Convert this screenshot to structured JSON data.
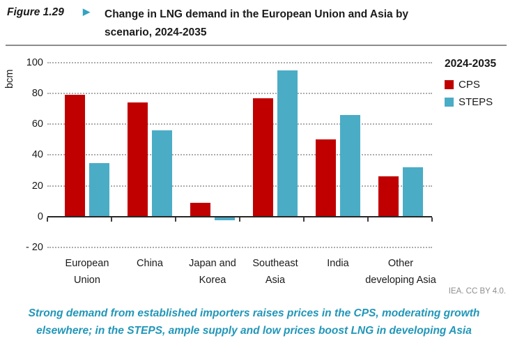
{
  "figure": {
    "label": "Figure 1.29",
    "marker": "▶",
    "title_lines": [
      "Change in LNG demand in the European Union and Asia by",
      "scenario, 2024-2035"
    ]
  },
  "chart_data": {
    "type": "bar",
    "title": "Change in LNG demand in the European Union and Asia by scenario, 2024-2035",
    "xlabel": "",
    "ylabel": "bcm",
    "ylim": [
      -20,
      100
    ],
    "yticks": [
      100,
      80,
      60,
      40,
      20,
      0,
      -20
    ],
    "ytick_labels": [
      "100",
      "80",
      "60",
      "40",
      "20",
      "0",
      "- 20"
    ],
    "grid": "dotted horizontal gridlines on, zero axis solid",
    "legend_title": "2024-2035",
    "legend_position": "top-right",
    "categories": [
      "European Union",
      "China",
      "Japan and Korea",
      "Southeast Asia",
      "India",
      "Other developing Asia"
    ],
    "category_lines": [
      [
        "European",
        "Union"
      ],
      [
        "China"
      ],
      [
        "Japan and",
        "Korea"
      ],
      [
        "Southeast",
        "Asia"
      ],
      [
        "India"
      ],
      [
        "Other",
        "developing Asia"
      ]
    ],
    "series": [
      {
        "name": "CPS",
        "color": "#C00000",
        "values": [
          79,
          74,
          9,
          77,
          50,
          26
        ]
      },
      {
        "name": "STEPS",
        "color": "#4BACC6",
        "values": [
          35,
          56,
          -2,
          95,
          66,
          32
        ]
      }
    ]
  },
  "attribution": "IEA. CC BY 4.0.",
  "caption": {
    "lines": [
      "Strong demand from established importers raises prices in the CPS, moderating growth",
      "elsewhere; in the STEPS, ample supply and low prices boost LNG in developing Asia"
    ]
  },
  "colors": {
    "cps_red": "#C00000",
    "steps_teal": "#4BACC6",
    "marker_teal": "#33A3C2",
    "caption_teal": "#2196B8",
    "attribution_gray": "#8e8e8e",
    "divider_gray": "#8c8c8c"
  }
}
